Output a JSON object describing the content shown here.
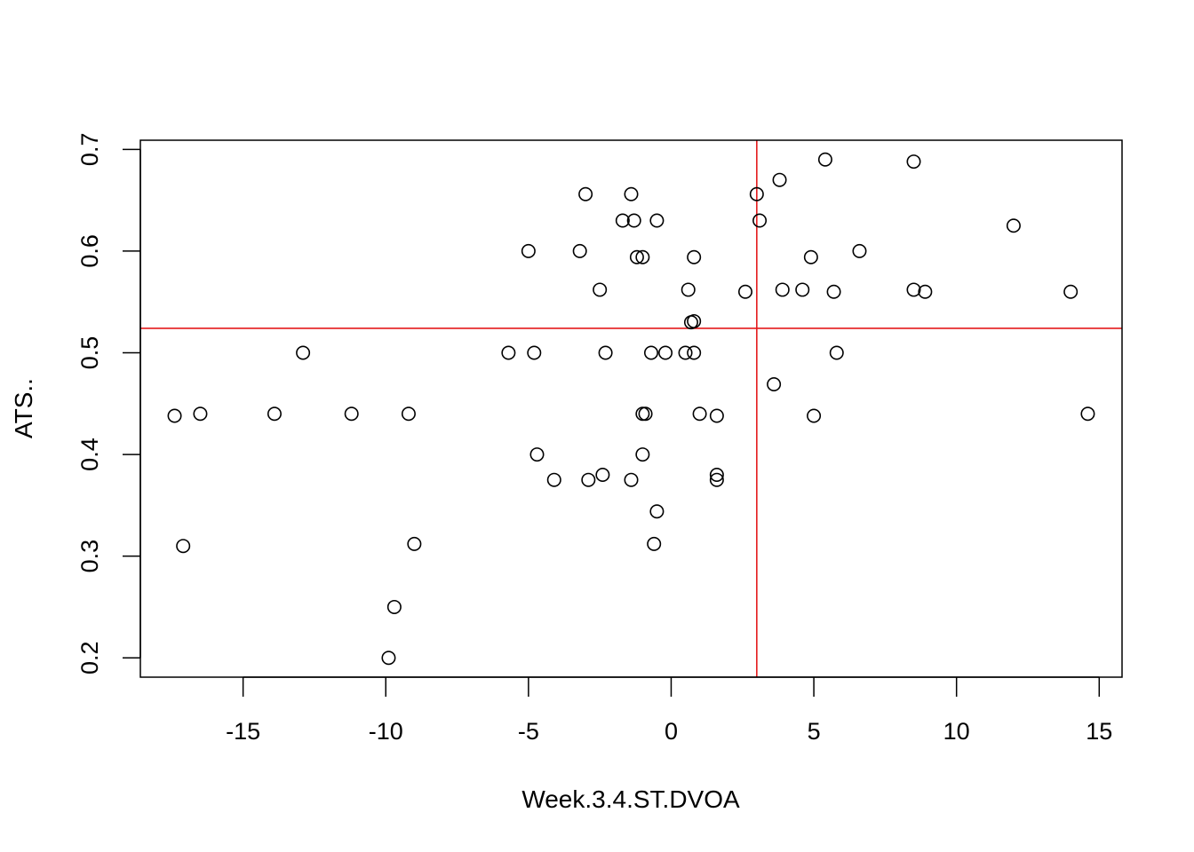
{
  "chart_data": {
    "type": "scatter",
    "title": "",
    "xlabel": "Week.3.4.ST.DVOA",
    "ylabel": "ATS..",
    "xlim": [
      -18.6,
      15.8
    ],
    "ylim": [
      0.181,
      0.709
    ],
    "x_ticks": [
      -15,
      -10,
      -5,
      0,
      5,
      10,
      15
    ],
    "x_tick_labels": [
      "-15",
      "-10",
      "-5",
      "0",
      "5",
      "10",
      "15"
    ],
    "y_ticks": [
      0.2,
      0.3,
      0.4,
      0.5,
      0.6,
      0.7
    ],
    "y_tick_labels": [
      "0.2",
      "0.3",
      "0.4",
      "0.5",
      "0.6",
      "0.7"
    ],
    "grid": false,
    "point_color": "#000000",
    "reference_lines": {
      "color": "#e41a1c",
      "vertical_x": 3.0,
      "horizontal_y": 0.524
    },
    "points": [
      {
        "x": -17.4,
        "y": 0.438
      },
      {
        "x": -16.5,
        "y": 0.44
      },
      {
        "x": -17.1,
        "y": 0.31
      },
      {
        "x": -13.9,
        "y": 0.44
      },
      {
        "x": -12.9,
        "y": 0.5
      },
      {
        "x": -11.2,
        "y": 0.44
      },
      {
        "x": -9.9,
        "y": 0.2
      },
      {
        "x": -9.7,
        "y": 0.25
      },
      {
        "x": -9.2,
        "y": 0.44
      },
      {
        "x": -9.0,
        "y": 0.312
      },
      {
        "x": -5.7,
        "y": 0.5
      },
      {
        "x": -5.0,
        "y": 0.6
      },
      {
        "x": -4.8,
        "y": 0.5
      },
      {
        "x": -4.7,
        "y": 0.4
      },
      {
        "x": -4.1,
        "y": 0.375
      },
      {
        "x": -3.2,
        "y": 0.6
      },
      {
        "x": -3.0,
        "y": 0.656
      },
      {
        "x": -2.9,
        "y": 0.375
      },
      {
        "x": -2.5,
        "y": 0.562
      },
      {
        "x": -2.4,
        "y": 0.38
      },
      {
        "x": -2.3,
        "y": 0.5
      },
      {
        "x": -1.7,
        "y": 0.63
      },
      {
        "x": -1.4,
        "y": 0.656
      },
      {
        "x": -1.4,
        "y": 0.375
      },
      {
        "x": -1.3,
        "y": 0.63
      },
      {
        "x": -1.2,
        "y": 0.594
      },
      {
        "x": -1.0,
        "y": 0.594
      },
      {
        "x": -1.0,
        "y": 0.44
      },
      {
        "x": -1.0,
        "y": 0.4
      },
      {
        "x": -0.9,
        "y": 0.44
      },
      {
        "x": -0.7,
        "y": 0.5
      },
      {
        "x": -0.6,
        "y": 0.312
      },
      {
        "x": -0.5,
        "y": 0.63
      },
      {
        "x": -0.5,
        "y": 0.344
      },
      {
        "x": -0.2,
        "y": 0.5
      },
      {
        "x": 0.5,
        "y": 0.5
      },
      {
        "x": 0.6,
        "y": 0.562
      },
      {
        "x": 0.7,
        "y": 0.53
      },
      {
        "x": 0.8,
        "y": 0.531
      },
      {
        "x": 0.8,
        "y": 0.594
      },
      {
        "x": 0.8,
        "y": 0.5
      },
      {
        "x": 1.0,
        "y": 0.44
      },
      {
        "x": 1.6,
        "y": 0.438
      },
      {
        "x": 1.6,
        "y": 0.38
      },
      {
        "x": 1.6,
        "y": 0.375
      },
      {
        "x": 2.6,
        "y": 0.56
      },
      {
        "x": 3.0,
        "y": 0.656
      },
      {
        "x": 3.1,
        "y": 0.63
      },
      {
        "x": 3.6,
        "y": 0.469
      },
      {
        "x": 3.8,
        "y": 0.67
      },
      {
        "x": 3.9,
        "y": 0.562
      },
      {
        "x": 4.6,
        "y": 0.562
      },
      {
        "x": 4.9,
        "y": 0.594
      },
      {
        "x": 5.0,
        "y": 0.438
      },
      {
        "x": 5.4,
        "y": 0.69
      },
      {
        "x": 5.7,
        "y": 0.56
      },
      {
        "x": 5.8,
        "y": 0.5
      },
      {
        "x": 6.6,
        "y": 0.6
      },
      {
        "x": 8.5,
        "y": 0.688
      },
      {
        "x": 8.5,
        "y": 0.562
      },
      {
        "x": 8.9,
        "y": 0.56
      },
      {
        "x": 12.0,
        "y": 0.625
      },
      {
        "x": 14.0,
        "y": 0.56
      },
      {
        "x": 14.6,
        "y": 0.44
      }
    ]
  }
}
